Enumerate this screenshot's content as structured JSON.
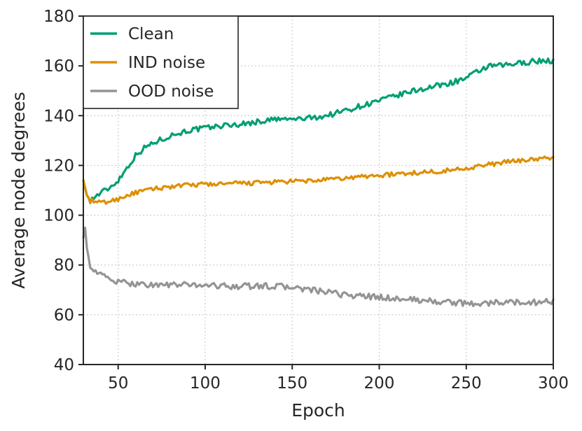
{
  "chart_data": {
    "type": "line",
    "title": "",
    "xlabel": "Epoch",
    "ylabel": "Average node degrees",
    "xlim": [
      30,
      300
    ],
    "ylim": [
      40,
      180
    ],
    "xticks": [
      50,
      100,
      150,
      200,
      250,
      300
    ],
    "yticks": [
      40,
      60,
      80,
      100,
      120,
      140,
      160,
      180
    ],
    "grid": true,
    "legend_position": "top-left",
    "series": [
      {
        "name": "Clean",
        "color": "#009e73",
        "x": [
          30,
          32,
          34,
          36,
          40,
          45,
          50,
          55,
          60,
          65,
          70,
          80,
          90,
          100,
          110,
          120,
          130,
          140,
          150,
          160,
          170,
          180,
          190,
          200,
          210,
          220,
          230,
          240,
          250,
          255,
          260,
          265,
          270,
          280,
          290,
          300
        ],
        "y": [
          114,
          108,
          106,
          107,
          109,
          111,
          114,
          119,
          124,
          127,
          129,
          132,
          134,
          135,
          136,
          136.5,
          137.5,
          138.5,
          138.5,
          139,
          140,
          142,
          144,
          146,
          148,
          150,
          151.5,
          153,
          155,
          157,
          159,
          160,
          160,
          161,
          162,
          162
        ]
      },
      {
        "name": "IND noise",
        "color": "#de8f05",
        "x": [
          30,
          32,
          34,
          36,
          40,
          45,
          50,
          55,
          60,
          70,
          80,
          90,
          100,
          110,
          120,
          130,
          140,
          150,
          160,
          170,
          180,
          190,
          200,
          210,
          220,
          230,
          240,
          250,
          260,
          270,
          280,
          290,
          300
        ],
        "y": [
          114,
          108,
          106,
          105.5,
          105,
          105.5,
          106.5,
          108,
          109,
          110.5,
          111.5,
          112,
          112.5,
          112.5,
          112.8,
          113,
          113.3,
          113.5,
          113.8,
          114.2,
          114.8,
          115.5,
          116,
          116.5,
          117,
          117.5,
          118,
          119,
          120,
          121,
          122,
          122.5,
          123
        ]
      },
      {
        "name": "OOD noise",
        "color": "#949494",
        "x": [
          30,
          31,
          32,
          33,
          34,
          36,
          38,
          40,
          45,
          50,
          60,
          70,
          80,
          90,
          100,
          110,
          120,
          130,
          140,
          150,
          160,
          170,
          180,
          190,
          200,
          210,
          220,
          230,
          240,
          250,
          260,
          270,
          280,
          290,
          300
        ],
        "y": [
          91,
          95,
          87,
          83,
          80,
          78,
          77,
          76,
          74.5,
          73,
          72.5,
          72,
          72,
          72,
          72,
          71.5,
          71.5,
          71.5,
          71.5,
          71,
          70,
          69,
          68,
          67.5,
          67,
          66.5,
          66,
          65.5,
          65,
          64.5,
          64.5,
          65,
          65,
          65,
          65.5
        ]
      }
    ]
  }
}
